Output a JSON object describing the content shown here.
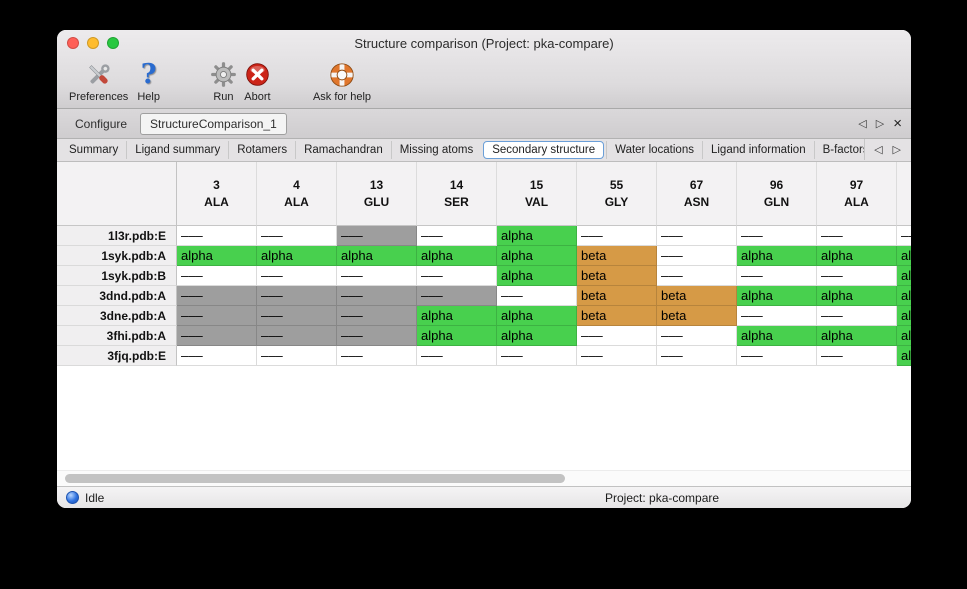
{
  "window": {
    "title": "Structure comparison (Project: pka-compare)"
  },
  "toolbar": {
    "items": [
      {
        "label": "Preferences",
        "icon": "tools-icon"
      },
      {
        "label": "Help",
        "icon": "help-icon"
      },
      {
        "label": "Run",
        "icon": "gear-icon"
      },
      {
        "label": "Abort",
        "icon": "abort-icon"
      },
      {
        "label": "Ask for help",
        "icon": "lifebuoy-icon"
      }
    ]
  },
  "document_tabs": {
    "tabs": [
      {
        "label": "Configure",
        "active": false
      },
      {
        "label": "StructureComparison_1",
        "active": true
      }
    ]
  },
  "section_tabs": {
    "selected": "Secondary structure",
    "tabs": [
      "Summary",
      "Ligand summary",
      "Rotamers",
      "Ramachandran",
      "Missing atoms",
      "Secondary structure",
      "Water locations",
      "Ligand information",
      "B-factors"
    ]
  },
  "icons": {
    "nav_back": "◁",
    "nav_forward": "▷",
    "close": "×"
  },
  "table": {
    "columns": [
      {
        "num": "3",
        "res": "ALA"
      },
      {
        "num": "4",
        "res": "ALA"
      },
      {
        "num": "13",
        "res": "GLU"
      },
      {
        "num": "14",
        "res": "SER"
      },
      {
        "num": "15",
        "res": "VAL"
      },
      {
        "num": "55",
        "res": "GLY"
      },
      {
        "num": "67",
        "res": "ASN"
      },
      {
        "num": "96",
        "res": "GLN"
      },
      {
        "num": "97",
        "res": "ALA"
      },
      {
        "num": "",
        "res": ""
      }
    ],
    "rows": [
      {
        "name": "1l3r.pdb:E",
        "cells": [
          {
            "text": "–––",
            "state": "none"
          },
          {
            "text": "–––",
            "state": "none"
          },
          {
            "text": "–––",
            "state": "missing"
          },
          {
            "text": "–––",
            "state": "none"
          },
          {
            "text": "alpha",
            "state": "alpha"
          },
          {
            "text": "–––",
            "state": "none"
          },
          {
            "text": "–––",
            "state": "none"
          },
          {
            "text": "–––",
            "state": "none"
          },
          {
            "text": "–––",
            "state": "none"
          },
          {
            "text": "–––",
            "state": "none"
          }
        ]
      },
      {
        "name": "1syk.pdb:A",
        "cells": [
          {
            "text": "alpha",
            "state": "alpha"
          },
          {
            "text": "alpha",
            "state": "alpha"
          },
          {
            "text": "alpha",
            "state": "alpha"
          },
          {
            "text": "alpha",
            "state": "alpha"
          },
          {
            "text": "alpha",
            "state": "alpha"
          },
          {
            "text": "beta",
            "state": "beta"
          },
          {
            "text": "–––",
            "state": "none"
          },
          {
            "text": "alpha",
            "state": "alpha"
          },
          {
            "text": "alpha",
            "state": "alpha"
          },
          {
            "text": "alpha",
            "state": "alpha"
          }
        ]
      },
      {
        "name": "1syk.pdb:B",
        "cells": [
          {
            "text": "–––",
            "state": "none"
          },
          {
            "text": "–––",
            "state": "none"
          },
          {
            "text": "–––",
            "state": "none"
          },
          {
            "text": "–––",
            "state": "none"
          },
          {
            "text": "alpha",
            "state": "alpha"
          },
          {
            "text": "beta",
            "state": "beta"
          },
          {
            "text": "–––",
            "state": "none"
          },
          {
            "text": "–––",
            "state": "none"
          },
          {
            "text": "–––",
            "state": "none"
          },
          {
            "text": "alpha",
            "state": "alpha"
          }
        ]
      },
      {
        "name": "3dnd.pdb:A",
        "cells": [
          {
            "text": "–––",
            "state": "missing"
          },
          {
            "text": "–––",
            "state": "missing"
          },
          {
            "text": "–––",
            "state": "missing"
          },
          {
            "text": "–––",
            "state": "missing"
          },
          {
            "text": "–––",
            "state": "none"
          },
          {
            "text": "beta",
            "state": "beta"
          },
          {
            "text": "beta",
            "state": "beta"
          },
          {
            "text": "alpha",
            "state": "alpha"
          },
          {
            "text": "alpha",
            "state": "alpha"
          },
          {
            "text": "alpha",
            "state": "alpha"
          }
        ]
      },
      {
        "name": "3dne.pdb:A",
        "cells": [
          {
            "text": "–––",
            "state": "missing"
          },
          {
            "text": "–––",
            "state": "missing"
          },
          {
            "text": "–––",
            "state": "missing"
          },
          {
            "text": "alpha",
            "state": "alpha"
          },
          {
            "text": "alpha",
            "state": "alpha"
          },
          {
            "text": "beta",
            "state": "beta"
          },
          {
            "text": "beta",
            "state": "beta"
          },
          {
            "text": "–––",
            "state": "none"
          },
          {
            "text": "–––",
            "state": "none"
          },
          {
            "text": "alpha",
            "state": "alpha"
          }
        ]
      },
      {
        "name": "3fhi.pdb:A",
        "cells": [
          {
            "text": "–––",
            "state": "missing"
          },
          {
            "text": "–––",
            "state": "missing"
          },
          {
            "text": "–––",
            "state": "missing"
          },
          {
            "text": "alpha",
            "state": "alpha"
          },
          {
            "text": "alpha",
            "state": "alpha"
          },
          {
            "text": "–––",
            "state": "none"
          },
          {
            "text": "–––",
            "state": "none"
          },
          {
            "text": "alpha",
            "state": "alpha"
          },
          {
            "text": "alpha",
            "state": "alpha"
          },
          {
            "text": "alpha",
            "state": "alpha"
          }
        ]
      },
      {
        "name": "3fjq.pdb:E",
        "cells": [
          {
            "text": "–––",
            "state": "none"
          },
          {
            "text": "–––",
            "state": "none"
          },
          {
            "text": "–––",
            "state": "none"
          },
          {
            "text": "–––",
            "state": "none"
          },
          {
            "text": "–––",
            "state": "none"
          },
          {
            "text": "–––",
            "state": "none"
          },
          {
            "text": "–––",
            "state": "none"
          },
          {
            "text": "–––",
            "state": "none"
          },
          {
            "text": "–––",
            "state": "none"
          },
          {
            "text": "alpha",
            "state": "alpha"
          }
        ]
      }
    ]
  },
  "colors": {
    "alpha": "#48d04e",
    "beta": "#d69a46",
    "missing": "#9e9e9e",
    "none": "#ffffff",
    "accent": "#6b9fd8",
    "traffic_close": "#ff5f57",
    "traffic_minimize": "#febc2e",
    "traffic_zoom": "#28c840"
  },
  "statusbar": {
    "status_label": "Idle",
    "project_label": "Project: pka-compare"
  }
}
